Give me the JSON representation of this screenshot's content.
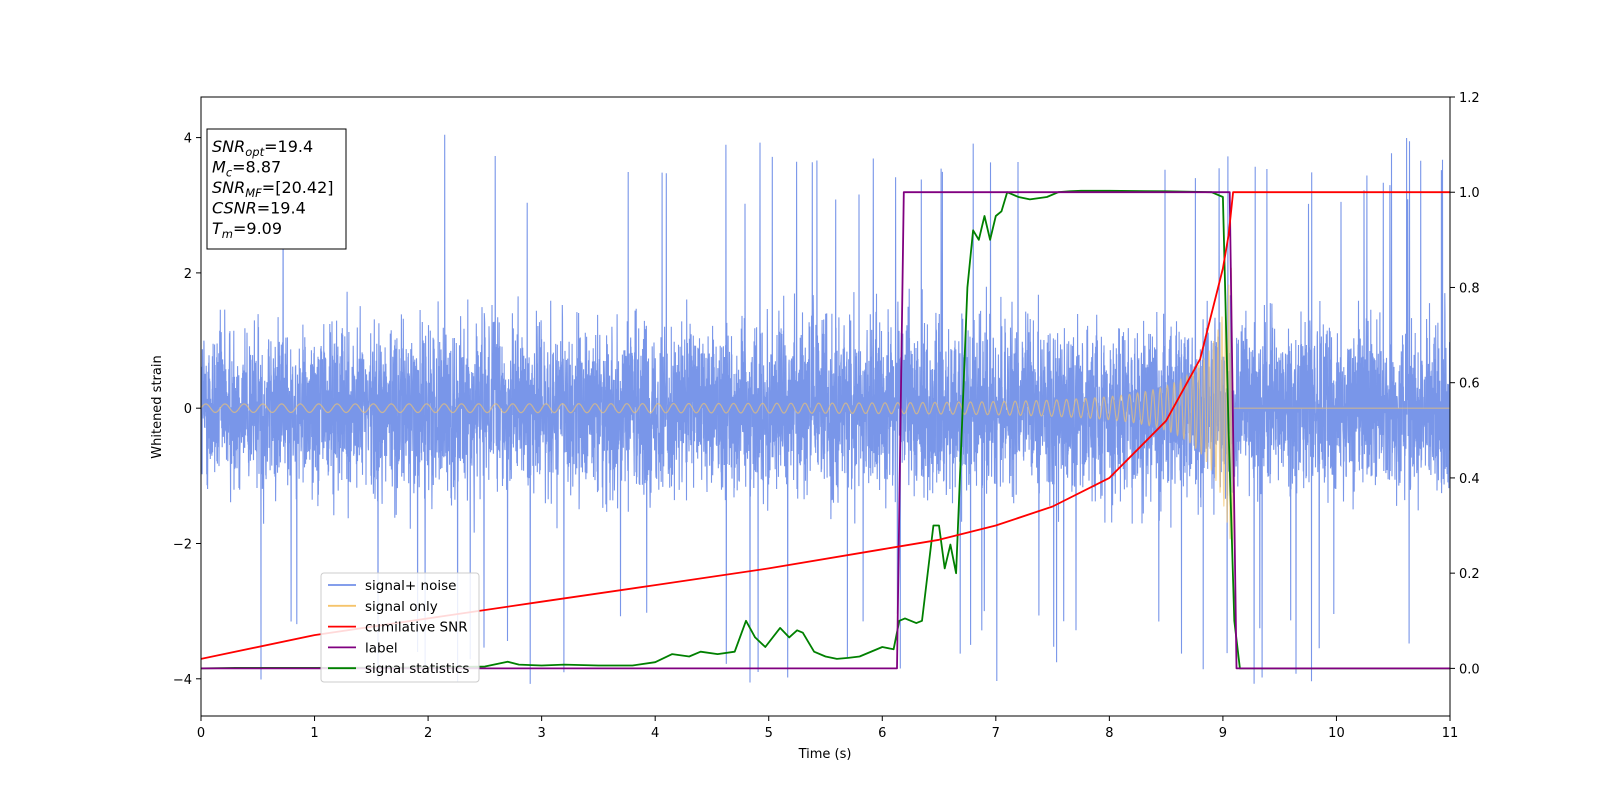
{
  "chart_data": {
    "type": "line",
    "xlabel": "Time (s)",
    "ylabel": "Whitened strain",
    "xlim": [
      0,
      11
    ],
    "ylim": [
      -4.55,
      4.6
    ],
    "y2lim": [
      -0.1,
      1.2
    ],
    "x_ticks": [
      "0",
      "1",
      "2",
      "3",
      "4",
      "5",
      "6",
      "7",
      "8",
      "9",
      "10",
      "11"
    ],
    "y_ticks": [
      "−4",
      "−2",
      "0",
      "2",
      "4"
    ],
    "y2_ticks": [
      "0.0",
      "0.2",
      "0.4",
      "0.6",
      "0.8",
      "1.0",
      "1.2"
    ],
    "grid": false,
    "legend_position": "lower-left",
    "info_box": {
      "lines": [
        {
          "symbol": "SNR",
          "sub": "opt",
          "value": "=19.4"
        },
        {
          "symbol": "M",
          "sub": "c",
          "value": "=8.87"
        },
        {
          "symbol": "SNR",
          "sub": "MF",
          "value": "=[20.42]"
        },
        {
          "symbol": "CSNR",
          "sub": "",
          "value": "=19.4"
        },
        {
          "symbol": "T",
          "sub": "m",
          "value": "=9.09"
        }
      ]
    },
    "series": [
      {
        "name": "signal+ noise",
        "color": "#7290e8",
        "axis": "left",
        "description": "noise band about +/-2.2 with spikes to about +/-4.1 from t=0 to 11"
      },
      {
        "name": "signal only",
        "color": "#f5c46b",
        "axis": "left",
        "chirp": {
          "t_start": 0,
          "t_merge": 9.09,
          "amp_start": 0.06,
          "amp_peak": 2.3
        },
        "description": "chirp growing in amplitude and frequency, ending at 9.09 s; flat at 0 afterwards"
      },
      {
        "name": "cumilative SNR",
        "color": "#ff0000",
        "axis": "right",
        "x": [
          0,
          1,
          2,
          3,
          4,
          5,
          6,
          6.5,
          7,
          7.5,
          8,
          8.5,
          8.8,
          9.0,
          9.05,
          9.09,
          11
        ],
        "y": [
          0.02,
          0.07,
          0.105,
          0.14,
          0.175,
          0.21,
          0.25,
          0.27,
          0.3,
          0.34,
          0.4,
          0.52,
          0.65,
          0.84,
          0.91,
          1.0,
          1.0
        ]
      },
      {
        "name": "label",
        "color": "#800080",
        "axis": "right",
        "x": [
          0,
          6.13,
          6.19,
          9.06,
          9.12,
          11
        ],
        "y": [
          0,
          0,
          1,
          1,
          0,
          0
        ]
      },
      {
        "name": "signal statistics",
        "color": "#008000",
        "axis": "right",
        "x": [
          0,
          0.3,
          1,
          2,
          2.5,
          2.7,
          2.8,
          3,
          3.2,
          3.5,
          3.8,
          4,
          4.15,
          4.3,
          4.4,
          4.55,
          4.7,
          4.8,
          4.88,
          4.97,
          5.1,
          5.18,
          5.25,
          5.3,
          5.4,
          5.5,
          5.6,
          5.7,
          5.8,
          6.0,
          6.1,
          6.15,
          6.2,
          6.3,
          6.35,
          6.4,
          6.45,
          6.5,
          6.55,
          6.6,
          6.65,
          6.7,
          6.75,
          6.8,
          6.85,
          6.9,
          6.95,
          7.0,
          7.05,
          7.1,
          7.2,
          7.3,
          7.45,
          7.55,
          7.65,
          7.75,
          7.8,
          8.0,
          8.5,
          8.9,
          9.0,
          9.05,
          9.1,
          9.15,
          9.2,
          9.4,
          11
        ],
        "y": [
          0.0,
          0.001,
          0.001,
          0.002,
          0.004,
          0.014,
          0.008,
          0.006,
          0.008,
          0.006,
          0.006,
          0.013,
          0.03,
          0.025,
          0.035,
          0.03,
          0.035,
          0.1,
          0.065,
          0.045,
          0.085,
          0.065,
          0.08,
          0.075,
          0.035,
          0.025,
          0.02,
          0.022,
          0.025,
          0.045,
          0.04,
          0.1,
          0.105,
          0.095,
          0.1,
          0.2,
          0.3,
          0.3,
          0.21,
          0.26,
          0.2,
          0.5,
          0.8,
          0.92,
          0.9,
          0.95,
          0.9,
          0.95,
          0.96,
          1.0,
          0.99,
          0.985,
          0.99,
          1.0,
          1.002,
          1.003,
          1.003,
          1.003,
          1.002,
          1.0,
          0.99,
          0.5,
          0.1,
          0.0,
          0.0,
          0.0,
          0.0
        ]
      }
    ]
  }
}
